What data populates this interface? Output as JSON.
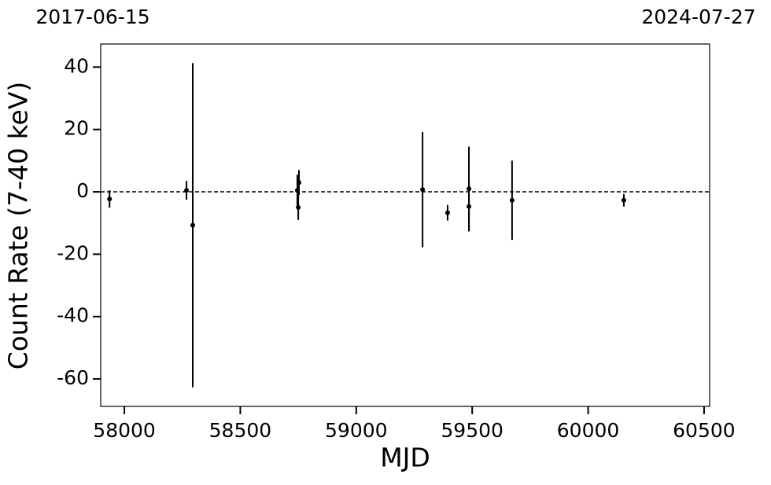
{
  "chart_data": {
    "type": "scatter",
    "x_label": "MJD",
    "y_label": "Count Rate (7-40 keV)",
    "top_labels": [
      "2017-06-15",
      "2024-07-27"
    ],
    "x": [
      57936,
      58268,
      58295,
      58746,
      58750,
      58753,
      59286,
      59394,
      59486,
      59486,
      59672,
      60154
    ],
    "values": [
      -2.3,
      0.5,
      -10.7,
      0.5,
      -5,
      3,
      0.7,
      -6.7,
      1,
      -4.7,
      -2.7,
      -2.7
    ],
    "errors": [
      2.8,
      3,
      52,
      5,
      4,
      4,
      18.5,
      2.5,
      13.5,
      8,
      12.7,
      2
    ],
    "color": "#000000",
    "reference_line": 0,
    "xlim": [
      57898,
      60524
    ],
    "xticks": [
      58000,
      58500,
      59000,
      59500,
      60000,
      60500
    ],
    "ylim": [
      -68.8,
      47.4
    ],
    "yticks": [
      -60,
      -40,
      -20,
      0,
      20,
      40
    ]
  }
}
